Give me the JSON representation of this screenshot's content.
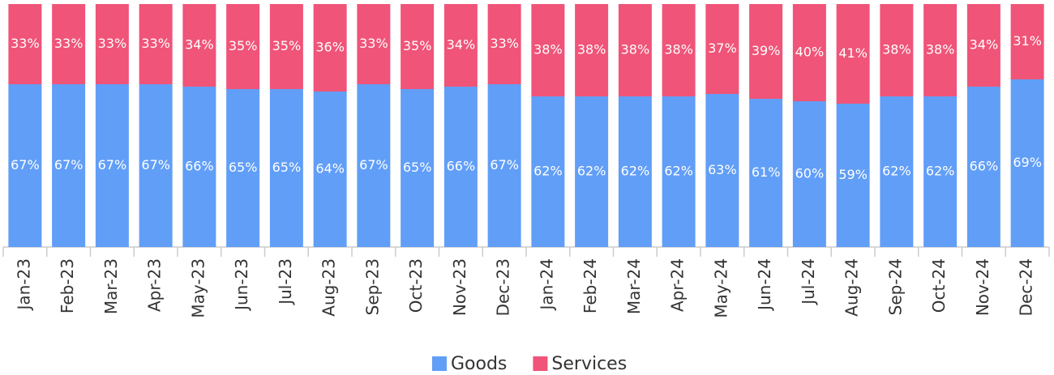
{
  "chart_data": {
    "type": "bar",
    "stacked": true,
    "categories": [
      "Jan-23",
      "Feb-23",
      "Mar-23",
      "Apr-23",
      "May-23",
      "Jun-23",
      "Jul-23",
      "Aug-23",
      "Sep-23",
      "Oct-23",
      "Nov-23",
      "Dec-23",
      "Jan-24",
      "Feb-24",
      "Mar-24",
      "Apr-24",
      "May-24",
      "Jun-24",
      "Jul-24",
      "Aug-24",
      "Sep-24",
      "Oct-24",
      "Nov-24",
      "Dec-24"
    ],
    "series": [
      {
        "name": "Goods",
        "color": "#619ef7",
        "values": [
          67,
          67,
          67,
          67,
          66,
          65,
          65,
          64,
          67,
          65,
          66,
          67,
          62,
          62,
          62,
          62,
          63,
          61,
          60,
          59,
          62,
          62,
          66,
          69
        ],
        "value_labels": [
          "67%",
          "67%",
          "67%",
          "67%",
          "66%",
          "65%",
          "65%",
          "64%",
          "67%",
          "65%",
          "66%",
          "67%",
          "62%",
          "62%",
          "62%",
          "62%",
          "63%",
          "61%",
          "60%",
          "59%",
          "62%",
          "62%",
          "66%",
          "69%"
        ]
      },
      {
        "name": "Services",
        "color": "#f05478",
        "values": [
          33,
          33,
          33,
          33,
          34,
          35,
          35,
          36,
          33,
          35,
          34,
          33,
          38,
          38,
          38,
          38,
          37,
          39,
          40,
          41,
          38,
          38,
          34,
          31
        ],
        "value_labels": [
          "33%",
          "33%",
          "33%",
          "33%",
          "34%",
          "35%",
          "35%",
          "36%",
          "33%",
          "35%",
          "34%",
          "33%",
          "38%",
          "38%",
          "38%",
          "38%",
          "37%",
          "39%",
          "40%",
          "41%",
          "38%",
          "38%",
          "34%",
          "31%"
        ]
      }
    ],
    "ylim": [
      0,
      100
    ],
    "legend": "bottom"
  }
}
